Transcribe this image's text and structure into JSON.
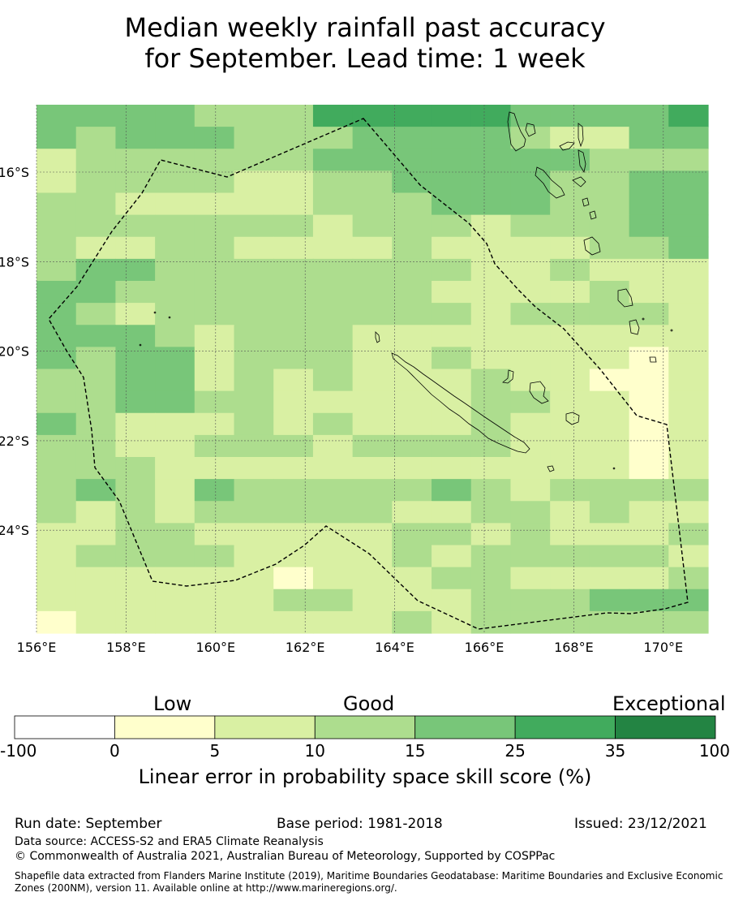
{
  "title_line1": "Median weekly rainfall past accuracy",
  "title_line2": "for September. Lead time: 1 week",
  "map": {
    "lon_ticks": [
      "156°E",
      "158°E",
      "160°E",
      "162°E",
      "164°E",
      "166°E",
      "168°E",
      "170°E"
    ],
    "lat_ticks": [
      "16°S",
      "18°S",
      "20°S",
      "22°S",
      "24°S"
    ],
    "colors": [
      "#ffffff",
      "#ffffcc",
      "#d9f0a3",
      "#addd8e",
      "#78c679",
      "#41ab5d",
      "#238443"
    ],
    "grid": [
      "44443335555544445",
      "43444333444432244",
      "23333334444444333",
      "23333223344443344",
      "33222223334443344",
      "33333332333233344",
      "32233222232222334",
      "34433333333223222",
      "44333333332222322",
      "43233333333233332",
      "44432333222222222",
      "43442333223222212",
      "33442323222322112",
      "33443322222332212",
      "43222323222322212",
      "33223332333322212",
      "33322222222222212",
      "34324333334323333",
      "32323333322332322",
      "22332222233232223",
      "23333222232333332",
      "22222212223322223",
      "22222233222333444",
      "12222222232333333"
    ]
  },
  "colorbar": {
    "categories": [
      "Low",
      "Good",
      "Exceptional"
    ],
    "ticks": [
      "-100",
      "0",
      "5",
      "10",
      "15",
      "25",
      "35",
      "100"
    ],
    "bins": [
      "#ffffff",
      "#ffffcc",
      "#d9f0a3",
      "#addd8e",
      "#78c679",
      "#41ab5d",
      "#238443"
    ],
    "label": "Linear error in probability space skill score (%)"
  },
  "footer": {
    "run_date": "Run date: September",
    "base_period": "Base period: 1981-2018",
    "issued": "Issued: 23/12/2021",
    "data_source": "Data source: ACCESS-S2 and ERA5 Climate Reanalysis",
    "copyright": "© Commonwealth of Australia 2021, Australian Bureau of Meteorology, Supported by COSPPac",
    "shapefile": "Shapefile data extracted from Flanders Marine Institute (2019), Maritime Boundaries Geodatabase: Maritime Boundaries and Exclusive Economic Zones (200NM), version 11. Available online at http://www.marineregions.org/."
  }
}
